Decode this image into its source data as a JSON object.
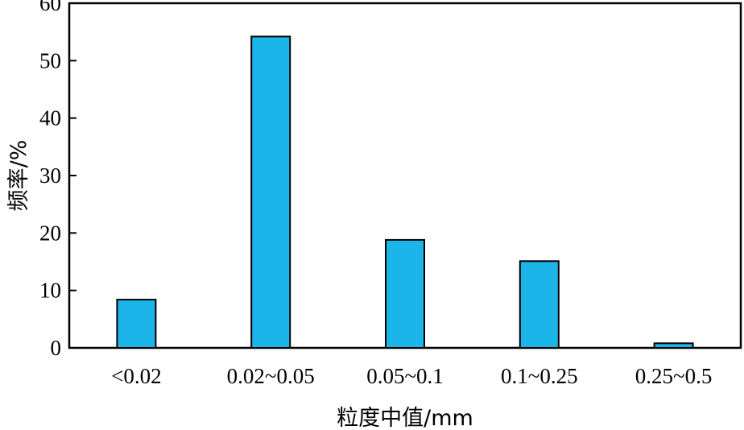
{
  "chart_data": {
    "type": "bar",
    "title": "",
    "xlabel": "粒度中值/mm",
    "ylabel": "频率/%",
    "categories": [
      "<0.02",
      "0.02~0.05",
      "0.05~0.1",
      "0.1~0.25",
      "0.25~0.5"
    ],
    "values": [
      8.4,
      54.2,
      18.8,
      15.1,
      0.8
    ],
    "ylim": [
      0,
      60
    ],
    "yticks": [
      0,
      10,
      20,
      30,
      40,
      50,
      60
    ],
    "grid": false,
    "bar_color": "#1cb5ea",
    "bar_stroke": "#000000"
  }
}
